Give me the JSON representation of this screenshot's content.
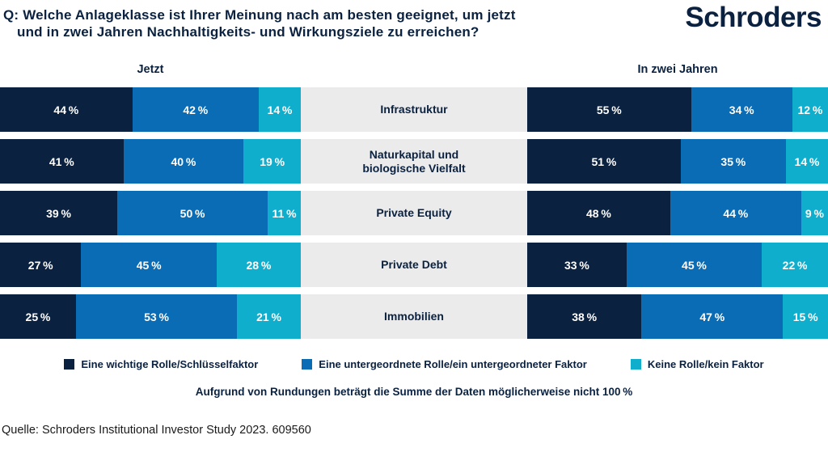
{
  "header": {
    "title_line1": "Q: Welche Anlageklasse ist Ihrer Meinung nach am besten geeignet, um jetzt",
    "title_line2": "und in zwei Jahren Nachhaltigkeits- und Wirkungsziele zu erreichen?",
    "logo_text": "Schroders"
  },
  "colors": {
    "navy": "#0A2140",
    "blue": "#0A6CB5",
    "cyan": "#0FAECD",
    "label_band": "#EBEBEB"
  },
  "chart_data": {
    "type": "bar",
    "orientation": "horizontal-stacked",
    "unit": "%",
    "group_headers": [
      "Jetzt",
      "In zwei Jahren"
    ],
    "categories": [
      "Infrastruktur",
      "Naturkapital und biologische Vielfalt",
      "Private Equity",
      "Private Debt",
      "Immobilien"
    ],
    "series_labels": [
      "Eine wichtige Rolle/Schlüsselfaktor",
      "Eine untergeordnete Rolle/ein untergeordneter Faktor",
      "Keine Rolle/kein Faktor"
    ],
    "jetzt": [
      [
        44,
        42,
        14
      ],
      [
        41,
        40,
        19
      ],
      [
        39,
        50,
        11
      ],
      [
        27,
        45,
        28
      ],
      [
        25,
        53,
        21
      ]
    ],
    "in_zwei_jahren": [
      [
        55,
        34,
        12
      ],
      [
        51,
        35,
        14
      ],
      [
        48,
        44,
        9
      ],
      [
        33,
        45,
        22
      ],
      [
        38,
        47,
        15
      ]
    ]
  },
  "legend": {
    "items": [
      {
        "label": "Eine wichtige Rolle/Schlüsselfaktor",
        "color": "#0A2140"
      },
      {
        "label": "Eine untergeordnete Rolle/ein untergeordneter Faktor",
        "color": "#0A6CB5"
      },
      {
        "label": "Keine Rolle/kein Faktor",
        "color": "#0FAECD"
      }
    ]
  },
  "note": "Aufgrund von Rundungen beträgt die Summe der Daten möglicherweise nicht 100 %",
  "footer": "Quelle: Schroders Institutional Investor Study 2023. 609560"
}
